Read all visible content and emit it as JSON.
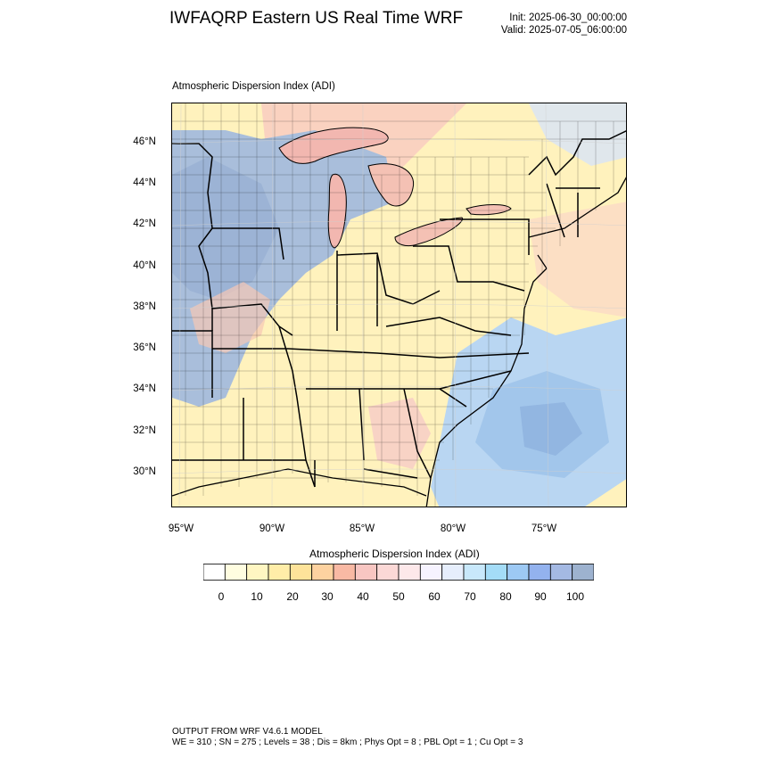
{
  "title": "IWFAQRP Eastern US Real Time WRF",
  "init": "Init: 2025-06-30_00:00:00",
  "valid": "Valid: 2025-07-05_06:00:00",
  "map_subtitle": "Atmospheric Dispersion Index   (ADI)",
  "lat_labels": [
    "46°N",
    "44°N",
    "42°N",
    "40°N",
    "38°N",
    "36°N",
    "34°N",
    "32°N",
    "30°N"
  ],
  "lon_labels": [
    "95°W",
    "90°W",
    "85°W",
    "80°W",
    "75°W"
  ],
  "colorbar": {
    "title": "Atmospheric Dispersion Index  (ADI)",
    "tick_labels": [
      "0",
      "10",
      "20",
      "30",
      "40",
      "50",
      "60",
      "70",
      "80",
      "90",
      "100"
    ],
    "colors": [
      "#ffffff",
      "#fffde0",
      "#fff6c2",
      "#ffeda8",
      "#fee39a",
      "#fdd2a0",
      "#f9b9a4",
      "#f8c6c2",
      "#fbd8d6",
      "#fde8ea",
      "#f6f3ff",
      "#e6eefc",
      "#c8e8fb",
      "#a4dcf7",
      "#9dc9f4",
      "#93b2ee",
      "#a4b9e3",
      "#9db2cf"
    ]
  },
  "footer": {
    "line1": "OUTPUT FROM WRF V4.6.1 MODEL",
    "line2": "WE = 310 ; SN = 275 ; Levels = 38 ; Dis = 8km ; Phys Opt = 8 ; PBL Opt = 1 ; Cu Opt = 3"
  }
}
